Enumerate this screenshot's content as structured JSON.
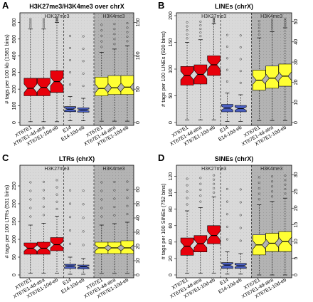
{
  "colors": {
    "h3k27_bg": "#d9d9d9",
    "h3k4_bg": "#b3b3b3",
    "red": "#e8000b",
    "yellow": "#ffff33",
    "blue": "#4a5fc1",
    "panel_border": "#000000"
  },
  "chart_data": [
    {
      "type": "boxplot",
      "letter": "A",
      "title": "H3K27me3/H3K4me3 over chrX",
      "ylabel": "# tags per 100 kb (1581 bins)",
      "left_axis": {
        "ylim": [
          0,
          640
        ],
        "ticks": [
          0,
          100,
          200,
          300,
          400,
          500,
          600
        ]
      },
      "right_axis": {
        "ylim": [
          0,
          160
        ],
        "ticks": [
          0,
          50,
          100,
          150
        ]
      },
      "regions": [
        "H3K27me3",
        "H3K4me3"
      ],
      "boxes": [
        {
          "label": "XT67E1",
          "group": "H3K27me3",
          "color": "red",
          "axis": "left",
          "whisker_low": 5,
          "q1": 160,
          "median": 205,
          "q3": 265,
          "whisker_high": 560,
          "outliers_top": true
        },
        {
          "label": "XT67E1-4d-atra",
          "group": "H3K27me3",
          "color": "red",
          "axis": "left",
          "whisker_low": 5,
          "q1": 160,
          "median": 210,
          "q3": 265,
          "whisker_high": 560,
          "outliers_top": true
        },
        {
          "label": "XT67E1-10d-eb",
          "group": "H3K27me3",
          "color": "red",
          "axis": "left",
          "whisker_low": 5,
          "q1": 180,
          "median": 245,
          "q3": 310,
          "whisker_high": 600,
          "outliers_top": true
        },
        {
          "label": "E14",
          "group": "H3K27me3",
          "color": "blue",
          "axis": "left",
          "whisker_low": 10,
          "q1": 65,
          "median": 80,
          "q3": 95,
          "whisker_high": 155,
          "outliers_top": true
        },
        {
          "label": "E14-10d-eb",
          "group": "H3K27me3",
          "color": "blue",
          "axis": "left",
          "whisker_low": 10,
          "q1": 62,
          "median": 75,
          "q3": 88,
          "whisker_high": 145,
          "outliers_top": true
        },
        {
          "label": "XT67E1",
          "group": "H3K4me3",
          "color": "yellow",
          "axis": "right",
          "whisker_low": 2,
          "q1": 40,
          "median": 51,
          "q3": 68,
          "whisker_high": 105,
          "outliers_top": true
        },
        {
          "label": "XT67E1-4d-atra",
          "group": "H3K4me3",
          "color": "yellow",
          "axis": "right",
          "whisker_low": 2,
          "q1": 42,
          "median": 52,
          "q3": 70,
          "whisker_high": 110,
          "outliers_top": true
        },
        {
          "label": "XT67E1-10d-eb",
          "group": "H3K4me3",
          "color": "yellow",
          "axis": "right",
          "whisker_low": 2,
          "q1": 42,
          "median": 53,
          "q3": 70,
          "whisker_high": 115,
          "outliers_top": true
        }
      ]
    },
    {
      "type": "boxplot",
      "letter": "B",
      "title": "LINEs (chrX)",
      "ylabel": "# tags per 100 LINEs (920 bins)",
      "left_axis": {
        "ylim": [
          0,
          200
        ],
        "ticks": [
          0,
          50,
          100,
          150,
          200
        ]
      },
      "right_axis": {
        "ylim": [
          0,
          53
        ],
        "ticks": [
          0,
          10,
          20,
          30,
          40,
          50
        ]
      },
      "regions": [
        "H3K27me3",
        "H3K4me3"
      ],
      "boxes": [
        {
          "label": "XT67E1",
          "group": "H3K27me3",
          "color": "red",
          "axis": "left",
          "whisker_low": 5,
          "q1": 70,
          "median": 88,
          "q3": 105,
          "whisker_high": 150,
          "outliers_top": true
        },
        {
          "label": "XT67E1-4d-atra",
          "group": "H3K27me3",
          "color": "red",
          "axis": "left",
          "whisker_low": 5,
          "q1": 72,
          "median": 90,
          "q3": 108,
          "whisker_high": 155,
          "outliers_top": true
        },
        {
          "label": "XT67E1-10d-eb",
          "group": "H3K27me3",
          "color": "red",
          "axis": "left",
          "whisker_low": 5,
          "q1": 88,
          "median": 108,
          "q3": 125,
          "whisker_high": 185,
          "outliers_top": true
        },
        {
          "label": "E14",
          "group": "H3K27me3",
          "color": "blue",
          "axis": "left",
          "whisker_low": 2,
          "q1": 20,
          "median": 27,
          "q3": 34,
          "whisker_high": 55,
          "outliers_top": true
        },
        {
          "label": "E14-10d-eb",
          "group": "H3K27me3",
          "color": "blue",
          "axis": "left",
          "whisker_low": 2,
          "q1": 20,
          "median": 26,
          "q3": 32,
          "whisker_high": 52,
          "outliers_top": true
        },
        {
          "label": "XT67E1",
          "group": "H3K4me3",
          "color": "yellow",
          "axis": "right",
          "whisker_low": 1,
          "q1": 16,
          "median": 21,
          "q3": 26,
          "whisker_high": 42,
          "outliers_top": true
        },
        {
          "label": "XT67E1-4d-atra",
          "group": "H3K4me3",
          "color": "yellow",
          "axis": "right",
          "whisker_low": 1,
          "q1": 17,
          "median": 22,
          "q3": 28,
          "whisker_high": 45,
          "outliers_top": true
        },
        {
          "label": "XT67E1-10d-eb",
          "group": "H3K4me3",
          "color": "yellow",
          "axis": "right",
          "whisker_low": 1,
          "q1": 18,
          "median": 23,
          "q3": 29,
          "whisker_high": 47,
          "outliers_top": true
        }
      ]
    },
    {
      "type": "boxplot",
      "letter": "C",
      "title": "LTRs (chrX)",
      "ylabel": "# tags per 100 LTRs (531 bins)",
      "left_axis": {
        "ylim": [
          0,
          300
        ],
        "ticks": [
          0,
          50,
          100,
          150,
          200,
          250
        ]
      },
      "right_axis": {
        "ylim": [
          0,
          75
        ],
        "ticks": [
          0,
          10,
          20,
          30,
          40,
          50,
          60
        ]
      },
      "regions": [
        "H3K27me3",
        "H3K4me3"
      ],
      "boxes": [
        {
          "label": "XT67E1",
          "group": "H3K27me3",
          "color": "red",
          "axis": "left",
          "whisker_low": 5,
          "q1": 58,
          "median": 75,
          "q3": 90,
          "whisker_high": 140,
          "outliers_top": true
        },
        {
          "label": "XT67E1-4d-atra",
          "group": "H3K27me3",
          "color": "red",
          "axis": "left",
          "whisker_low": 5,
          "q1": 58,
          "median": 75,
          "q3": 92,
          "whisker_high": 145,
          "outliers_top": true
        },
        {
          "label": "XT67E1-10d-eb",
          "group": "H3K27me3",
          "color": "red",
          "axis": "left",
          "whisker_low": 5,
          "q1": 68,
          "median": 85,
          "q3": 105,
          "whisker_high": 165,
          "outliers_top": true
        },
        {
          "label": "E14",
          "group": "H3K27me3",
          "color": "blue",
          "axis": "left",
          "whisker_low": 2,
          "q1": 18,
          "median": 25,
          "q3": 30,
          "whisker_high": 50,
          "outliers_top": true
        },
        {
          "label": "E14-10d-eb",
          "group": "H3K27me3",
          "color": "blue",
          "axis": "left",
          "whisker_low": 2,
          "q1": 17,
          "median": 23,
          "q3": 28,
          "whisker_high": 46,
          "outliers_top": true
        },
        {
          "label": "XT67E1",
          "group": "H3K4me3",
          "color": "yellow",
          "axis": "right",
          "whisker_low": 1,
          "q1": 15,
          "median": 19,
          "q3": 23,
          "whisker_high": 35,
          "outliers_top": true
        },
        {
          "label": "XT67E1-4d-atra",
          "group": "H3K4me3",
          "color": "yellow",
          "axis": "right",
          "whisker_low": 1,
          "q1": 15,
          "median": 19,
          "q3": 23,
          "whisker_high": 36,
          "outliers_top": true
        },
        {
          "label": "XT67E1-10d-eb",
          "group": "H3K4me3",
          "color": "yellow",
          "axis": "right",
          "whisker_low": 1,
          "q1": 15,
          "median": 19,
          "q3": 24,
          "whisker_high": 37,
          "outliers_top": true
        }
      ]
    },
    {
      "type": "boxplot",
      "letter": "D",
      "title": "SINEs (chrX)",
      "ylabel": "# tags per 100 SINEs (752 bins)",
      "left_axis": {
        "ylim": [
          0,
          130
        ],
        "ticks": [
          0,
          20,
          40,
          60,
          80,
          100,
          120
        ]
      },
      "right_axis": {
        "ylim": [
          0,
          32
        ],
        "ticks": [
          0,
          5,
          10,
          15,
          20,
          25,
          30
        ]
      },
      "regions": [
        "H3K27me3",
        "H3K4me3"
      ],
      "boxes": [
        {
          "label": "XT67E1",
          "group": "H3K27me3",
          "color": "red",
          "axis": "left",
          "whisker_low": 2,
          "q1": 24,
          "median": 35,
          "q3": 45,
          "whisker_high": 78,
          "outliers_top": true
        },
        {
          "label": "XT67E1-4d-atra",
          "group": "H3K27me3",
          "color": "red",
          "axis": "left",
          "whisker_low": 2,
          "q1": 28,
          "median": 38,
          "q3": 48,
          "whisker_high": 82,
          "outliers_top": true
        },
        {
          "label": "XT67E1-10d-eb",
          "group": "H3K27me3",
          "color": "red",
          "axis": "left",
          "whisker_low": 2,
          "q1": 38,
          "median": 48,
          "q3": 60,
          "whisker_high": 95,
          "outliers_top": true
        },
        {
          "label": "E14",
          "group": "H3K27me3",
          "color": "blue",
          "axis": "left",
          "whisker_low": 1,
          "q1": 8,
          "median": 12,
          "q3": 15,
          "whisker_high": 28,
          "outliers_top": true
        },
        {
          "label": "E14-10d-eb",
          "group": "H3K27me3",
          "color": "blue",
          "axis": "left",
          "whisker_low": 1,
          "q1": 8,
          "median": 11,
          "q3": 14,
          "whisker_high": 26,
          "outliers_top": true
        },
        {
          "label": "XT67E1",
          "group": "H3K4me3",
          "color": "yellow",
          "axis": "right",
          "whisker_low": 0,
          "q1": 6,
          "median": 9,
          "q3": 12,
          "whisker_high": 21,
          "outliers_top": true
        },
        {
          "label": "XT67E1-4d-atra",
          "group": "H3K4me3",
          "color": "yellow",
          "axis": "right",
          "whisker_low": 0,
          "q1": 7,
          "median": 9.5,
          "q3": 12.5,
          "whisker_high": 22,
          "outliers_top": true
        },
        {
          "label": "XT67E1-10d-eb",
          "group": "H3K4me3",
          "color": "yellow",
          "axis": "right",
          "whisker_low": 0,
          "q1": 7,
          "median": 10,
          "q3": 13,
          "whisker_high": 23,
          "outliers_top": true
        }
      ]
    }
  ]
}
